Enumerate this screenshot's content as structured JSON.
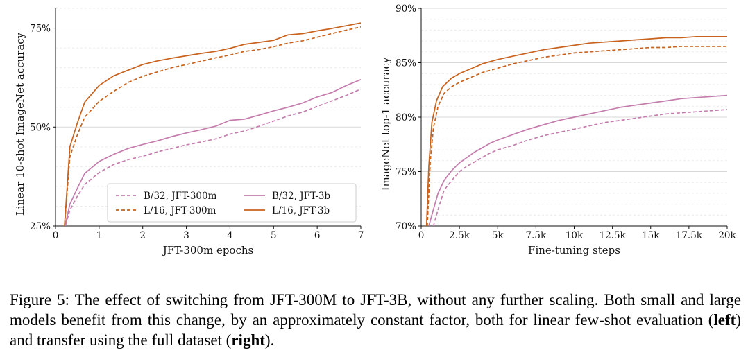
{
  "chart_data": [
    {
      "type": "line",
      "xlabel": "JFT-300m epochs",
      "ylabel": "Linear 10-shot ImageNet accuracy",
      "xlim": [
        0,
        7
      ],
      "ylim": [
        25,
        80
      ],
      "xticks": [
        0,
        1,
        2,
        3,
        4,
        5,
        6,
        7
      ],
      "xtick_labels": [
        "0",
        "1",
        "2",
        "3",
        "4",
        "5",
        "6",
        "7"
      ],
      "yticks": [
        25,
        50,
        75
      ],
      "ytick_labels": [
        "25%",
        "50%",
        "75%"
      ],
      "grid": true,
      "legend_position": "lower-right",
      "series": [
        {
          "name": "B/32, JFT-300m",
          "color": "#c47cad",
          "dash": "dashed",
          "x": [
            0.2,
            0.33,
            0.5,
            0.67,
            1,
            1.33,
            1.67,
            2,
            2.33,
            2.67,
            3,
            3.33,
            3.67,
            4,
            4.33,
            4.67,
            5,
            5.33,
            5.67,
            6,
            6.33,
            6.67,
            7
          ],
          "y": [
            24,
            29,
            32.5,
            35.5,
            38.5,
            40.5,
            41.8,
            42.6,
            43.7,
            44.6,
            45.5,
            46.2,
            47,
            48.2,
            49,
            50.2,
            51.5,
            52.8,
            53.8,
            55.2,
            56.6,
            58,
            59.6
          ]
        },
        {
          "name": "B/32, JFT-3b",
          "color": "#c47cad",
          "dash": "solid",
          "x": [
            0.2,
            0.33,
            0.5,
            0.67,
            1,
            1.33,
            1.67,
            2,
            2.33,
            2.67,
            3,
            3.33,
            3.67,
            4,
            4.33,
            4.67,
            5,
            5.33,
            5.67,
            6,
            6.33,
            6.67,
            7
          ],
          "y": [
            24,
            30.5,
            34.5,
            38.3,
            41.3,
            43.1,
            44.6,
            45.6,
            46.5,
            47.6,
            48.5,
            49.3,
            50.2,
            51.7,
            52,
            53,
            54.1,
            55,
            56.1,
            57.6,
            58.7,
            60.5,
            62
          ]
        },
        {
          "name": "L/16, JFT-300m",
          "color": "#c8621c",
          "dash": "dashed",
          "x": [
            0.2,
            0.33,
            0.5,
            0.67,
            1,
            1.33,
            1.67,
            2,
            2.33,
            2.67,
            3,
            3.33,
            3.67,
            4,
            4.33,
            4.67,
            5,
            5.33,
            5.67,
            6,
            6.33,
            6.67,
            7
          ],
          "y": [
            24,
            42.5,
            48,
            52.5,
            56.5,
            59,
            61.3,
            62.8,
            63.9,
            65,
            65.8,
            66.6,
            67.5,
            68.2,
            69.1,
            69.6,
            70.3,
            71.2,
            71.8,
            72.7,
            73.6,
            74.5,
            75.3
          ]
        },
        {
          "name": "L/16, JFT-3b",
          "color": "#c8621c",
          "dash": "solid",
          "x": [
            0.2,
            0.33,
            0.5,
            0.67,
            1,
            1.33,
            1.67,
            2,
            2.33,
            2.67,
            3,
            3.33,
            3.67,
            4,
            4.33,
            4.67,
            5,
            5.33,
            5.67,
            6,
            6.33,
            6.67,
            7
          ],
          "y": [
            24,
            45,
            51,
            56.3,
            60.5,
            62.9,
            64.4,
            65.8,
            66.7,
            67.4,
            68,
            68.6,
            69.1,
            69.9,
            70.9,
            71.4,
            71.9,
            73.3,
            73.6,
            74.3,
            74.9,
            75.6,
            76.3
          ]
        }
      ]
    },
    {
      "type": "line",
      "xlabel": "Fine-tuning steps",
      "ylabel": "ImageNet top-1 accuracy",
      "xlim": [
        0,
        20000
      ],
      "ylim": [
        70,
        90
      ],
      "xticks": [
        0,
        2500,
        5000,
        7500,
        10000,
        12500,
        15000,
        17500,
        20000
      ],
      "xtick_labels": [
        "0",
        "2.5k",
        "5k",
        "7.5k",
        "10k",
        "12.5k",
        "15k",
        "17.5k",
        "20k"
      ],
      "yticks": [
        70,
        75,
        80,
        85,
        90
      ],
      "ytick_labels": [
        "70%",
        "75%",
        "80%",
        "85%",
        "90%"
      ],
      "grid": true,
      "series": [
        {
          "name": "B/32, JFT-300m",
          "color": "#c47cad",
          "dash": "dashed",
          "x": [
            800,
            1100,
            1500,
            2000,
            2500,
            3000,
            3500,
            4000,
            4500,
            5000,
            6000,
            7000,
            8000,
            9000,
            10000,
            11000,
            12000,
            13000,
            14000,
            15000,
            16000,
            17000,
            18000,
            19000,
            20000
          ],
          "y": [
            70,
            71.5,
            73.3,
            74.2,
            75,
            75.5,
            75.9,
            76.3,
            76.7,
            77,
            77.4,
            77.9,
            78.3,
            78.6,
            78.9,
            79.2,
            79.5,
            79.7,
            79.9,
            80.1,
            80.3,
            80.4,
            80.5,
            80.6,
            80.7
          ]
        },
        {
          "name": "B/32, JFT-3b",
          "color": "#c47cad",
          "dash": "solid",
          "x": [
            500,
            800,
            1100,
            1500,
            2000,
            2500,
            3000,
            3500,
            4000,
            4500,
            5000,
            6000,
            7000,
            8000,
            9000,
            10000,
            11000,
            12000,
            13000,
            14000,
            15000,
            16000,
            17000,
            18000,
            19000,
            20000
          ],
          "y": [
            70,
            71.5,
            73,
            74.2,
            75.1,
            75.8,
            76.3,
            76.8,
            77.2,
            77.6,
            77.9,
            78.4,
            78.9,
            79.3,
            79.7,
            80,
            80.3,
            80.6,
            80.9,
            81.1,
            81.3,
            81.5,
            81.7,
            81.8,
            81.9,
            82
          ]
        },
        {
          "name": "L/16, JFT-300m",
          "color": "#c8621c",
          "dash": "dashed",
          "x": [
            400,
            600,
            800,
            1100,
            1500,
            2000,
            2500,
            3000,
            3500,
            4000,
            4500,
            5000,
            6000,
            7000,
            8000,
            9000,
            10000,
            11000,
            12000,
            13000,
            14000,
            15000,
            16000,
            17000,
            18000,
            19000,
            20000
          ],
          "y": [
            70,
            76,
            79,
            81,
            82.2,
            82.8,
            83.2,
            83.5,
            83.8,
            84.1,
            84.3,
            84.5,
            84.9,
            85.2,
            85.5,
            85.7,
            85.9,
            86,
            86.1,
            86.2,
            86.3,
            86.4,
            86.4,
            86.5,
            86.5,
            86.5,
            86.5
          ]
        },
        {
          "name": "L/16, JFT-3b",
          "color": "#c8621c",
          "dash": "solid",
          "x": [
            350,
            500,
            700,
            1000,
            1400,
            2000,
            2500,
            3000,
            3500,
            4000,
            4500,
            5000,
            6000,
            7000,
            8000,
            9000,
            10000,
            11000,
            12000,
            13000,
            14000,
            15000,
            16000,
            17000,
            18000,
            19000,
            20000
          ],
          "y": [
            70,
            75.5,
            79.5,
            81.5,
            82.8,
            83.6,
            84,
            84.3,
            84.6,
            84.9,
            85.1,
            85.3,
            85.6,
            85.9,
            86.2,
            86.4,
            86.6,
            86.8,
            86.9,
            87,
            87.1,
            87.2,
            87.3,
            87.3,
            87.4,
            87.4,
            87.4
          ]
        }
      ]
    }
  ],
  "caption": {
    "prefix": "Figure 5: The effect of switching from JFT-300M to JFT-3B, without any further scaling. Both small and large models benefit from this change, by an approximately constant factor, both for linear few-shot evaluation (",
    "left_word": "left",
    "middle": ") and transfer using the full dataset (",
    "right_word": "right",
    "suffix": ")."
  }
}
